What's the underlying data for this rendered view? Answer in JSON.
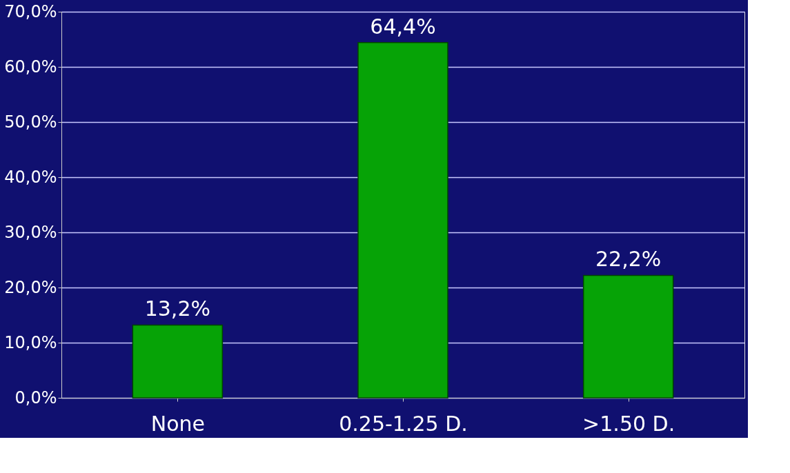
{
  "chart_data": {
    "type": "bar",
    "categories": [
      "None",
      "0.25-1.25 D.",
      ">1.50 D."
    ],
    "values": [
      13.2,
      64.4,
      22.2
    ],
    "color": "#06a306",
    "value_labels": [
      "13,2%",
      "64,4%",
      "22,2%"
    ],
    "ylim": [
      0,
      70
    ],
    "yticks": [
      {
        "value": 0,
        "label": "0,0%"
      },
      {
        "value": 10,
        "label": "10,0%"
      },
      {
        "value": 20,
        "label": "20,0%"
      },
      {
        "value": 30,
        "label": "30,0%"
      },
      {
        "value": 40,
        "label": "40,0%"
      },
      {
        "value": 50,
        "label": "50,0%"
      },
      {
        "value": 60,
        "label": "60,0%"
      },
      {
        "value": 70,
        "label": "70,0%"
      }
    ],
    "grid": "y"
  }
}
